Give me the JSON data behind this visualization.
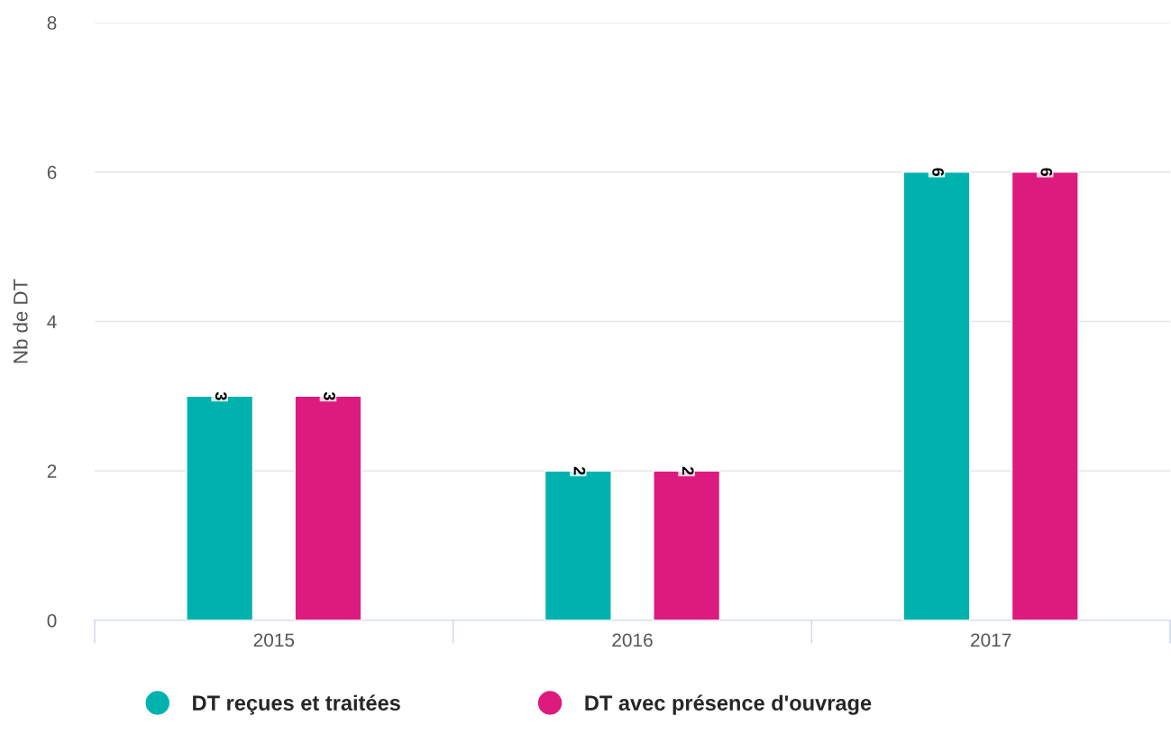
{
  "chart_data": {
    "type": "bar",
    "ylabel": "Nb de DT",
    "categories": [
      "2015",
      "2016",
      "2017"
    ],
    "series": [
      {
        "name": "DT reçues et traitées",
        "color": "#00b2ad",
        "values": [
          3,
          2,
          6
        ]
      },
      {
        "name": "DT avec présence d'ouvrage",
        "color": "#dd1a7e",
        "values": [
          3,
          2,
          6
        ]
      }
    ],
    "ylim": [
      0,
      8
    ],
    "yticks": [
      0,
      2,
      4,
      6,
      8
    ],
    "grid": "y",
    "legend": "bottom",
    "data_labels": true
  }
}
